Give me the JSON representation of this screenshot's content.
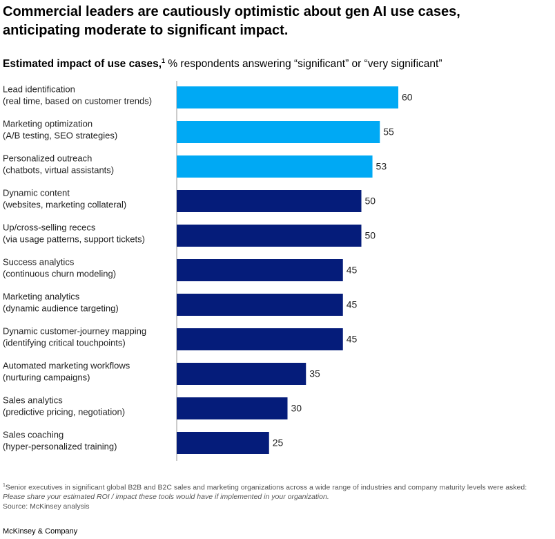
{
  "chart_data": {
    "type": "bar",
    "orientation": "horizontal",
    "title": "Commercial leaders are cautiously optimistic about gen AI use cases, anticipating moderate to significant impact.",
    "subtitle_bold": "Estimated impact of use cases,",
    "footnote_marker": "1",
    "subtitle": "% respondents answering “significant” or “very significant”",
    "categories": [
      "Lead identification",
      "Marketing optimization",
      "Personalized outreach",
      "Dynamic content",
      "Up/cross-selling rececs",
      "Success analytics",
      "Marketing analytics",
      "Dynamic customer-journey mapping",
      "Automated marketing workflows",
      "Sales analytics",
      "Sales coaching"
    ],
    "category_details": [
      "(real time, based on customer trends)",
      "(A/B testing, SEO strategies)",
      "(chatbots, virtual assistants)",
      "(websites, marketing collateral)",
      "(via usage patterns, support tickets)",
      "(continuous churn modeling)",
      "(dynamic audience targeting)",
      "(identifying critical touchpoints)",
      "(nurturing campaigns)",
      "(predictive pricing, negotiation)",
      "(hyper-personalized training)"
    ],
    "values": [
      60,
      55,
      53,
      50,
      50,
      45,
      45,
      45,
      35,
      30,
      25
    ],
    "colors": [
      "#00a9f4",
      "#00a9f4",
      "#00a9f4",
      "#051c7a",
      "#051c7a",
      "#051c7a",
      "#051c7a",
      "#051c7a",
      "#051c7a",
      "#051c7a",
      "#051c7a"
    ],
    "footnote": "Senior executives in significant global B2B and B2C sales and marketing organizations across a wide range of industries and company maturity levels were asked:",
    "footnote_question": "Please share your estimated ROI / impact these tools would have if implemented in your organization.",
    "source": "Source: McKinsey analysis",
    "brand": "McKinsey & Company"
  }
}
